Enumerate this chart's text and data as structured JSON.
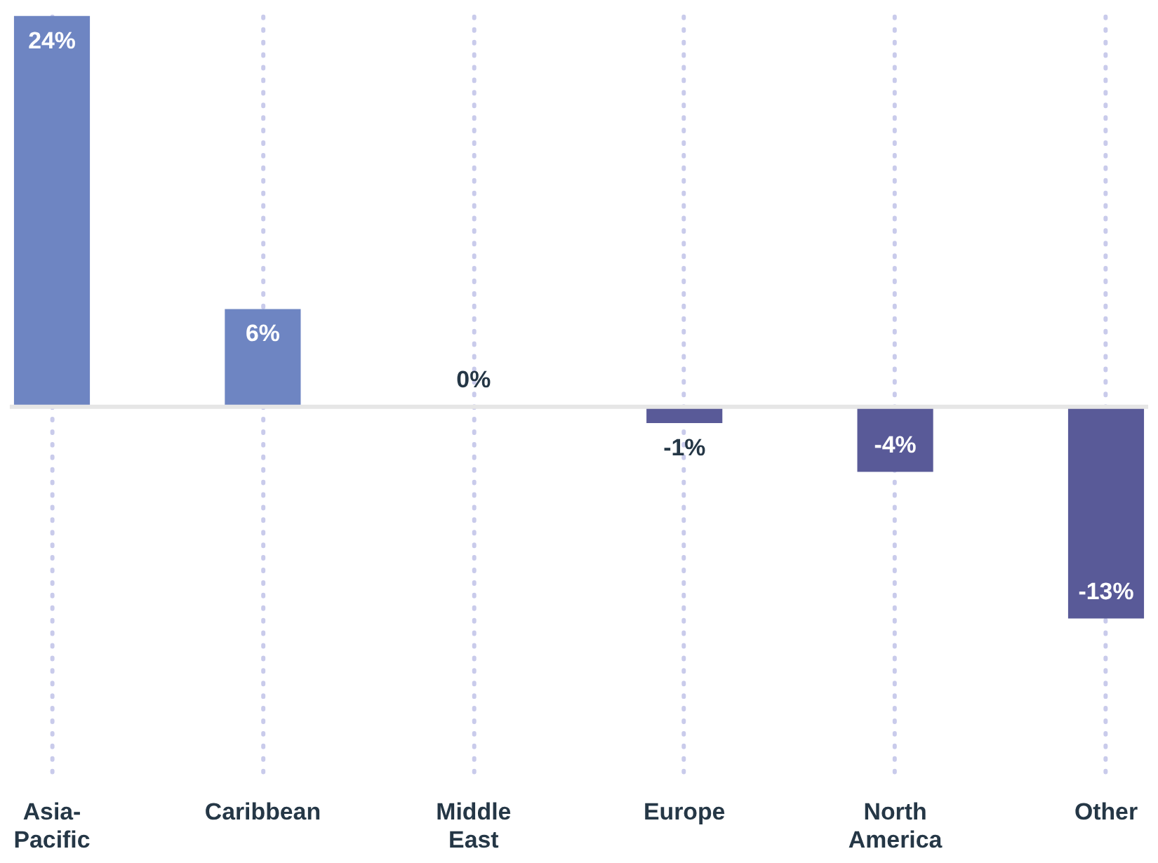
{
  "chart_data": {
    "type": "bar",
    "categories": [
      "Asia-Pacific",
      "Caribbean",
      "Middle East",
      "Europe",
      "North America",
      "Other"
    ],
    "values": [
      24,
      6,
      0,
      -1,
      -4,
      -13
    ],
    "value_labels": [
      "24%",
      "6%",
      "0%",
      "-1%",
      "-4%",
      "-13%"
    ],
    "colors": [
      "#6e85c2",
      "#6e85c2",
      "#6e85c2",
      "#595a98",
      "#595a98",
      "#595a98"
    ],
    "ylim": [
      -23,
      24
    ],
    "grid": "x",
    "tick_labels": "x",
    "ref_lines": [
      {
        "axis": "y",
        "value": 0,
        "label": null,
        "color": "#e6e6e6"
      }
    ]
  }
}
